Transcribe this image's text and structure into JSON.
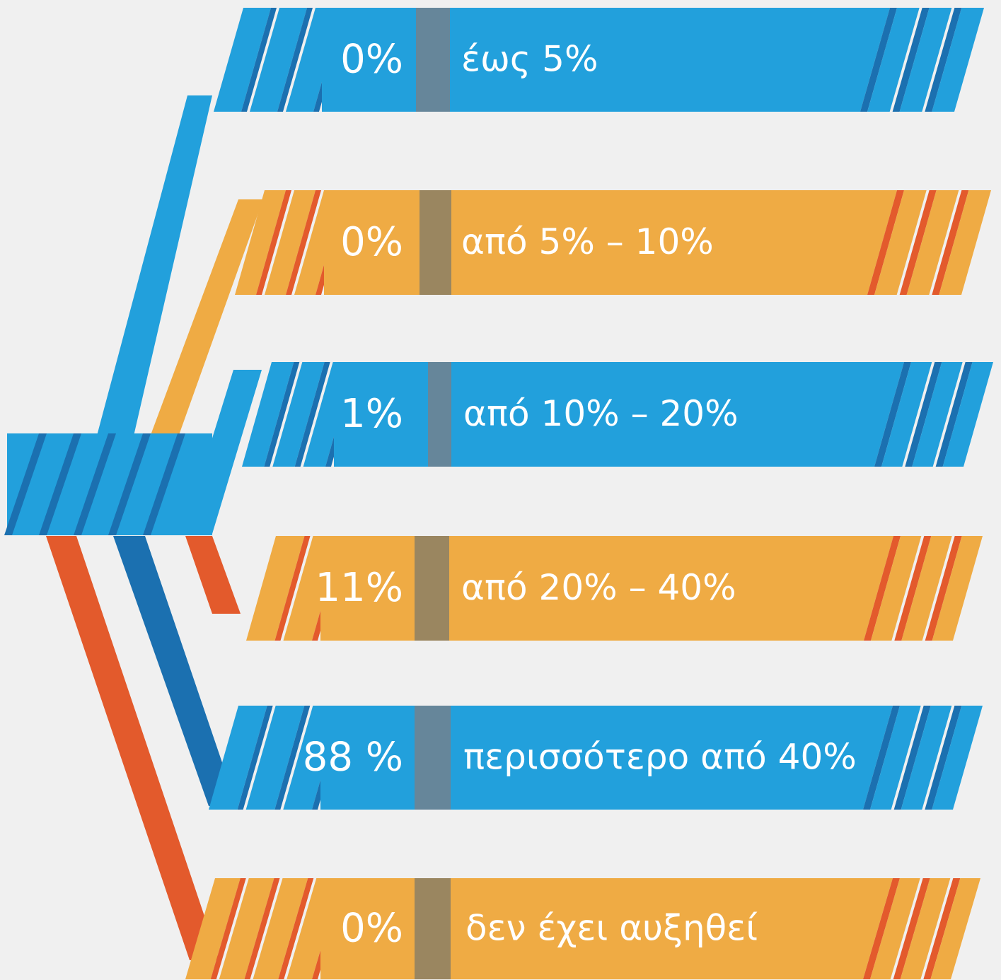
{
  "colors": {
    "blue": "#22a0dc",
    "blue_dark": "#1b70b0",
    "orange": "#efab44",
    "orange_dark": "#e35a2c",
    "background": "#f0f0f0",
    "divider_blue": "#66869a",
    "divider_orange": "#9a8660",
    "text": "#ffffff"
  },
  "chart_data": {
    "type": "bar",
    "categories": [
      "έως 5%",
      "από 5% – 10%",
      "από 10% – 20%",
      "από 20% – 40%",
      "περισσότερο από 40%",
      "δεν έχει αυξηθεί"
    ],
    "values": [
      0,
      0,
      1,
      11,
      88,
      0
    ],
    "value_labels": [
      "0%",
      "0%",
      "1%",
      "11%",
      "88 %",
      "0%"
    ],
    "unit": "%",
    "color_scheme": [
      "blue",
      "orange",
      "blue",
      "orange",
      "blue",
      "orange"
    ]
  }
}
